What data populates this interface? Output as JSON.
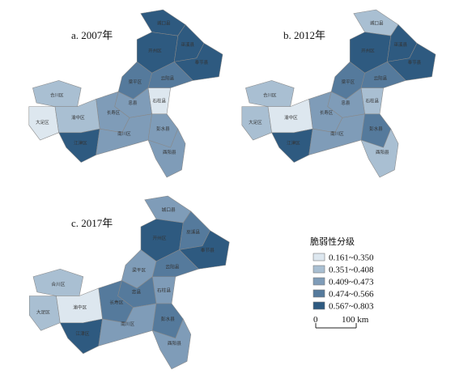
{
  "maps": [
    {
      "label": "a. 2007年",
      "classes": [
        4,
        4,
        4,
        4,
        3,
        3,
        0,
        2,
        2,
        1,
        0,
        1,
        4,
        2,
        2,
        2
      ]
    },
    {
      "label": "b. 2012年",
      "classes": [
        1,
        4,
        4,
        4,
        3,
        3,
        1,
        2,
        2,
        1,
        1,
        0,
        4,
        2,
        3,
        1
      ]
    },
    {
      "label": "c. 2017年",
      "classes": [
        2,
        4,
        3,
        4,
        3,
        2,
        2,
        3,
        3,
        1,
        1,
        0,
        4,
        2,
        3,
        2
      ]
    }
  ],
  "regions": [
    "城口县",
    "开州区",
    "巫溪县",
    "奉节县",
    "云阳县",
    "梁平区",
    "石柱县",
    "忠县",
    "长寿区",
    "合川区",
    "大足区",
    "渝中区",
    "江津区",
    "南川区",
    "彭水县",
    "酉阳县"
  ],
  "legend": {
    "title": "脆弱性分级",
    "items": [
      {
        "label": "0.161~0.350",
        "color": "#dde7ef"
      },
      {
        "label": "0.351~0.408",
        "color": "#a9bfd2"
      },
      {
        "label": "0.409~0.473",
        "color": "#7f9cb8"
      },
      {
        "label": "0.474~0.566",
        "color": "#557a9c"
      },
      {
        "label": "0.567~0.803",
        "color": "#2e5a80"
      }
    ]
  },
  "scale_bar": {
    "start": "0",
    "end": "100 km"
  }
}
